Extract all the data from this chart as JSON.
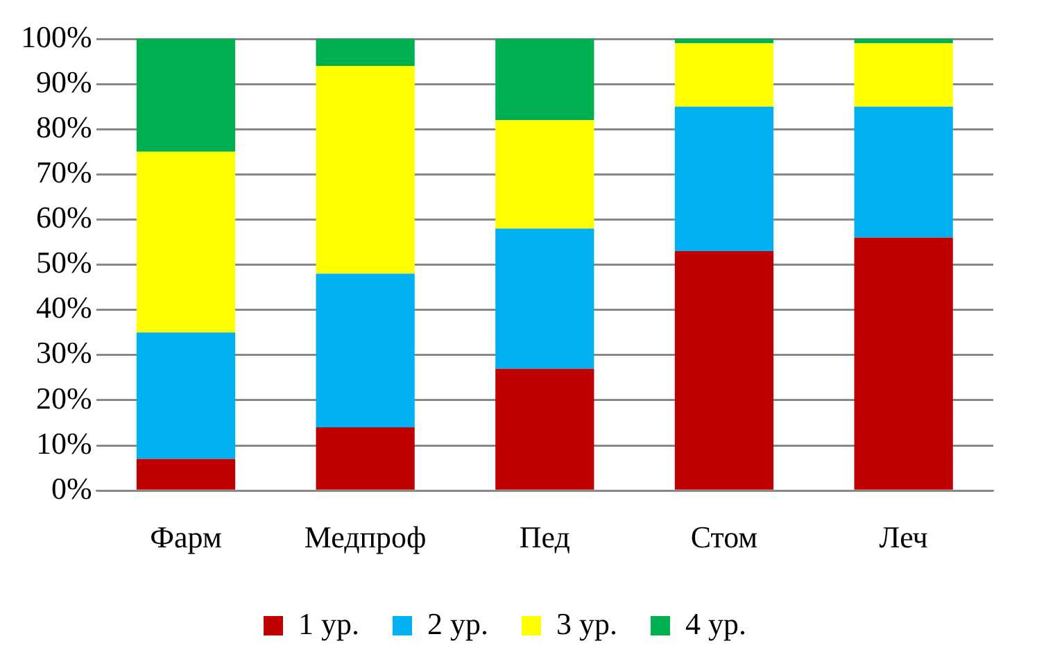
{
  "chart_data": {
    "type": "bar",
    "stacked": true,
    "categories": [
      "Фарм",
      "Медпроф",
      "Пед",
      "Стом",
      "Леч"
    ],
    "series": [
      {
        "name": "1 ур.",
        "color": "#c00000",
        "values": [
          7,
          14,
          27,
          53,
          56
        ]
      },
      {
        "name": "2 ур.",
        "color": "#00b0f0",
        "values": [
          28,
          34,
          31,
          32,
          29
        ]
      },
      {
        "name": "3 ур.",
        "color": "#ffff00",
        "values": [
          40,
          46,
          24,
          14,
          14
        ]
      },
      {
        "name": "4 ур.",
        "color": "#00b050",
        "values": [
          25,
          6,
          18,
          1,
          1
        ]
      }
    ],
    "ylim": [
      0,
      100
    ],
    "yticks": [
      {
        "value": 0,
        "label": "0%"
      },
      {
        "value": 10,
        "label": "10%"
      },
      {
        "value": 20,
        "label": "20%"
      },
      {
        "value": 30,
        "label": "30%"
      },
      {
        "value": 40,
        "label": "40%"
      },
      {
        "value": 50,
        "label": "50%"
      },
      {
        "value": 60,
        "label": "60%"
      },
      {
        "value": 70,
        "label": "70%"
      },
      {
        "value": 80,
        "label": "80%"
      },
      {
        "value": 90,
        "label": "90%"
      },
      {
        "value": 100,
        "label": "100%"
      }
    ],
    "grid": "y",
    "legend": "bottom"
  }
}
